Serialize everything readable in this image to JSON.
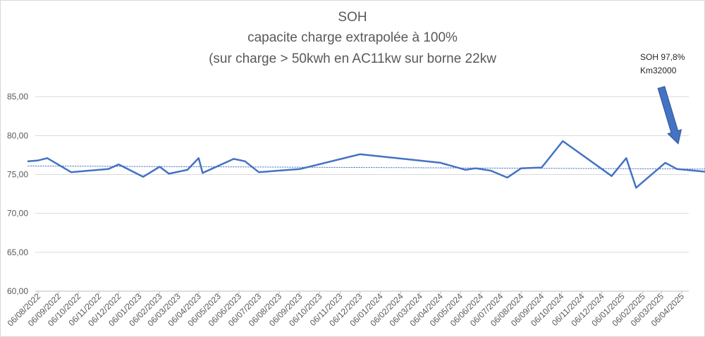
{
  "chart_data": {
    "type": "line",
    "title": "SOH",
    "subtitle_lines": [
      "capacite charge extrapolée à 100%",
      "(sur charge > 50kwh en AC11kw sur borne 22kw"
    ],
    "annotation_lines": [
      "SOH 97,8%",
      "Km32000"
    ],
    "xlabel": "",
    "ylabel": "",
    "ylim": [
      60,
      90
    ],
    "yticks": [
      "60,00",
      "65,00",
      "70,00",
      "75,00",
      "80,00",
      "85,00"
    ],
    "grid": "horizontal",
    "x_tick_labels": [
      "06/08/2022",
      "06/09/2022",
      "06/10/2022",
      "06/11/2022",
      "06/12/2022",
      "06/01/2023",
      "06/02/2023",
      "06/03/2023",
      "06/04/2023",
      "06/05/2023",
      "06/06/2023",
      "06/07/2023",
      "06/08/2023",
      "06/09/2023",
      "06/10/2023",
      "06/11/2023",
      "06/12/2023",
      "06/01/2024",
      "06/02/2024",
      "06/03/2024",
      "06/04/2024",
      "06/05/2024",
      "06/06/2024",
      "06/07/2024",
      "06/08/2024",
      "06/09/2024",
      "06/10/2024",
      "06/11/2024",
      "06/12/2024",
      "06/01/2025",
      "06/02/2025",
      "06/03/2025",
      "06/04/2025"
    ],
    "series": [
      {
        "color": "#4472c4",
        "points": [
          {
            "x": "2022-07-22",
            "y": 76.7
          },
          {
            "x": "2022-08-06",
            "y": 76.8
          },
          {
            "x": "2022-08-20",
            "y": 77.1
          },
          {
            "x": "2022-09-25",
            "y": 75.3
          },
          {
            "x": "2022-11-20",
            "y": 75.7
          },
          {
            "x": "2022-12-06",
            "y": 76.3
          },
          {
            "x": "2023-01-12",
            "y": 74.7
          },
          {
            "x": "2023-02-06",
            "y": 76.0
          },
          {
            "x": "2023-02-20",
            "y": 75.1
          },
          {
            "x": "2023-03-20",
            "y": 75.6
          },
          {
            "x": "2023-04-06",
            "y": 77.1
          },
          {
            "x": "2023-04-12",
            "y": 75.2
          },
          {
            "x": "2023-05-29",
            "y": 77.0
          },
          {
            "x": "2023-06-15",
            "y": 76.7
          },
          {
            "x": "2023-07-06",
            "y": 75.3
          },
          {
            "x": "2023-09-06",
            "y": 75.7
          },
          {
            "x": "2023-12-06",
            "y": 77.6
          },
          {
            "x": "2024-04-06",
            "y": 76.5
          },
          {
            "x": "2024-05-14",
            "y": 75.6
          },
          {
            "x": "2024-05-29",
            "y": 75.8
          },
          {
            "x": "2024-06-21",
            "y": 75.5
          },
          {
            "x": "2024-07-16",
            "y": 74.6
          },
          {
            "x": "2024-08-06",
            "y": 75.8
          },
          {
            "x": "2024-09-06",
            "y": 75.9
          },
          {
            "x": "2024-10-08",
            "y": 79.3
          },
          {
            "x": "2024-12-21",
            "y": 74.8
          },
          {
            "x": "2025-01-12",
            "y": 77.1
          },
          {
            "x": "2025-01-27",
            "y": 73.3
          },
          {
            "x": "2025-03-12",
            "y": 76.5
          },
          {
            "x": "2025-03-30",
            "y": 75.7
          },
          {
            "x": "2025-05-20",
            "y": 75.3
          }
        ]
      },
      {
        "color": "#4472c4",
        "style": "dotted",
        "points": [
          {
            "x": "2022-07-22",
            "y": 76.1
          },
          {
            "x": "2025-05-20",
            "y": 75.7
          }
        ]
      }
    ],
    "arrow_color": "#4472c4"
  }
}
